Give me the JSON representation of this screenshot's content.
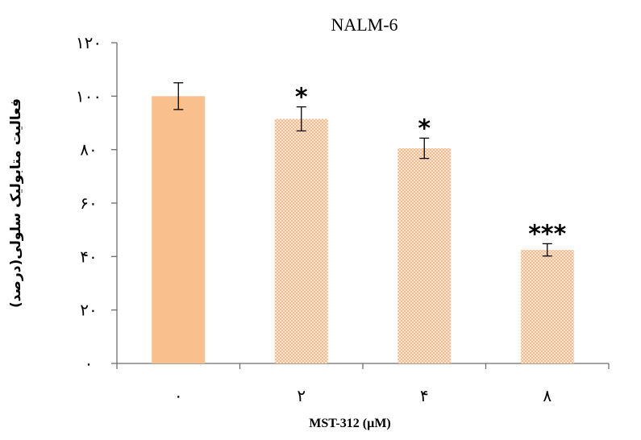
{
  "chart_data": {
    "type": "bar",
    "title": "NALM-6",
    "xlabel": "MST-312 (µM)",
    "ylabel": "فعالیت متابولیک سلولی(درصد)",
    "categories": [
      "۰",
      "۲",
      "۴",
      "۸"
    ],
    "values": [
      100,
      91.5,
      80.5,
      42.5
    ],
    "errors": [
      5,
      4.5,
      3.8,
      2.3
    ],
    "significance": [
      "",
      "*",
      "*",
      "***"
    ],
    "ylim": [
      0,
      120
    ],
    "yticks": [
      0,
      20,
      40,
      60,
      80,
      100,
      120
    ],
    "ytick_labels": [
      "۰",
      "۲۰",
      "۴۰",
      "۶۰",
      "۸۰",
      "۱۰۰",
      "۱۲۰"
    ],
    "grid": false,
    "legend": "none",
    "bar_styles": [
      "solid",
      "hatched",
      "hatched",
      "hatched"
    ],
    "colors": {
      "bar_fill": "#f9c08e",
      "hatch": "#f7b98a",
      "axis": "#6e6e6e",
      "error_bar": "#000000"
    }
  }
}
